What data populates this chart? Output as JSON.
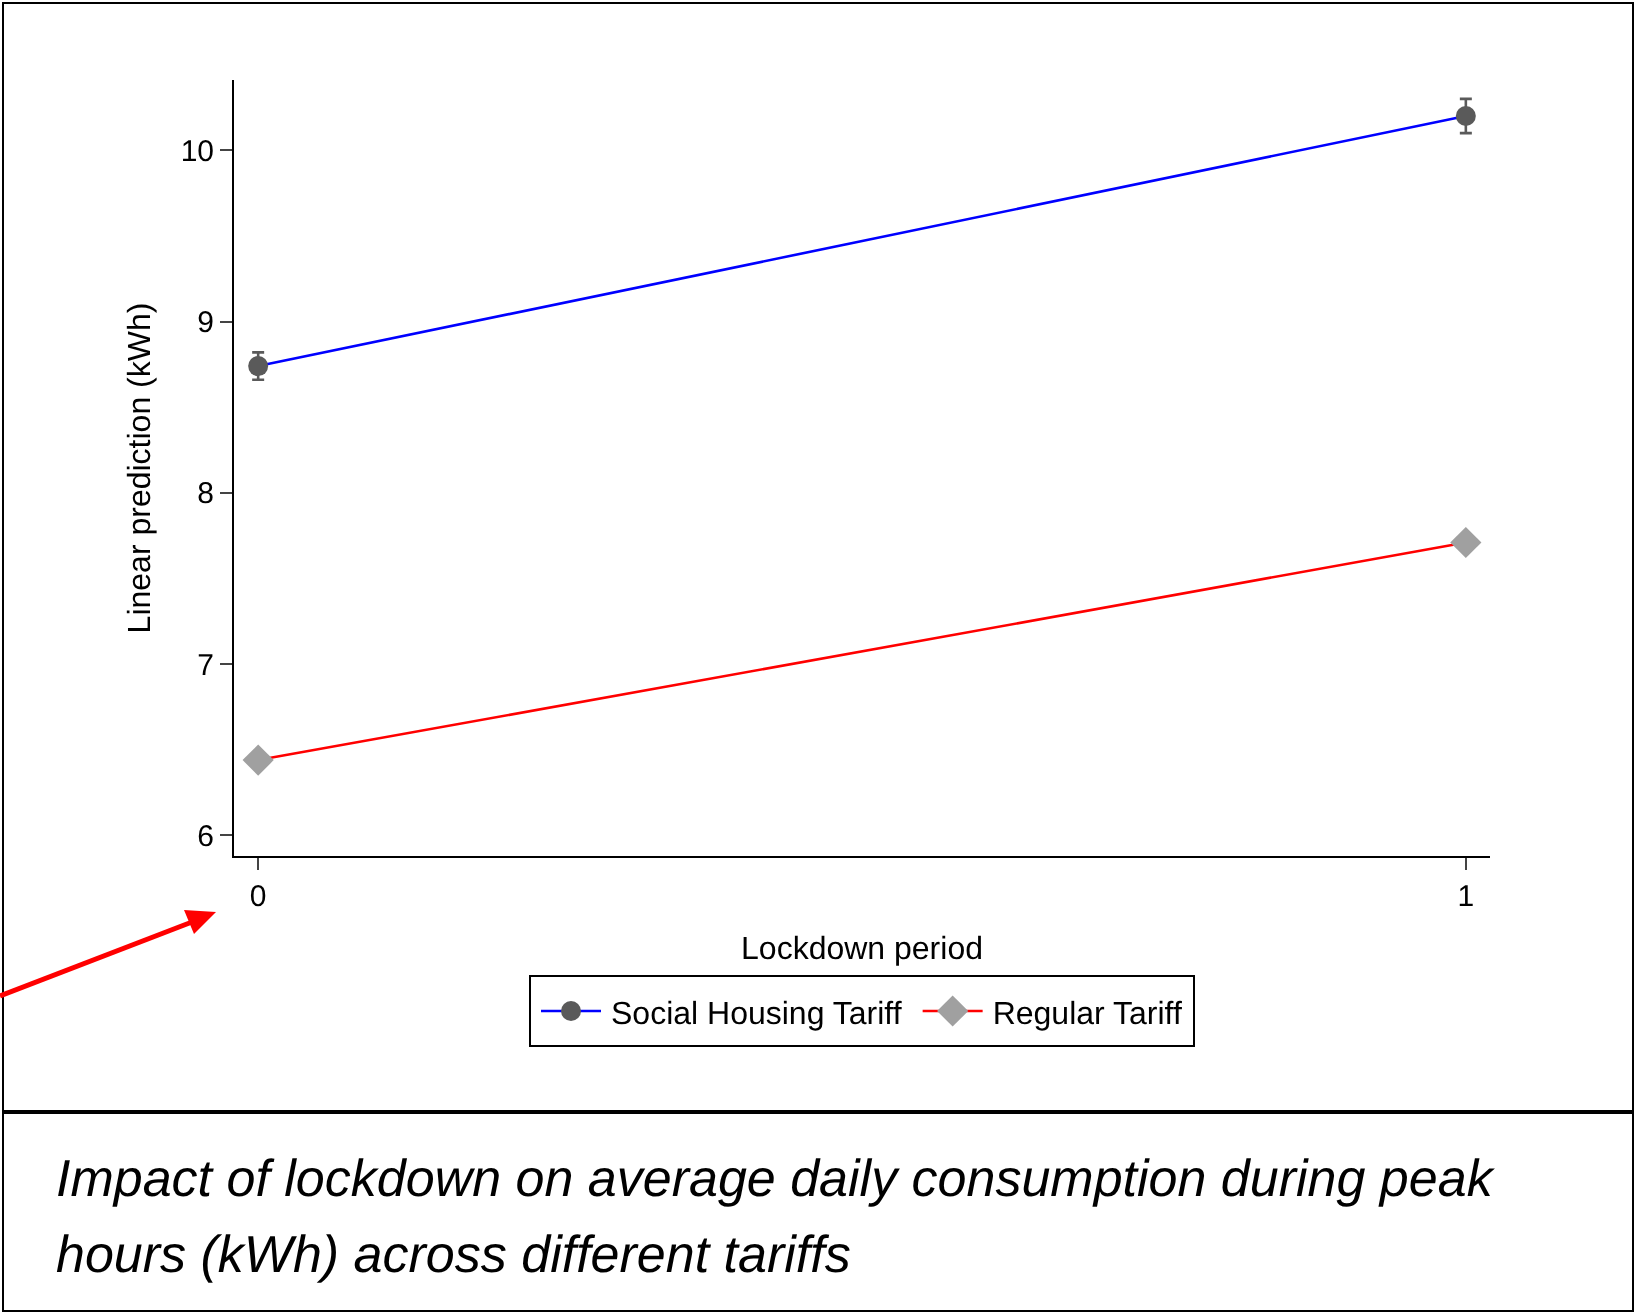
{
  "chart_data": {
    "type": "line",
    "xlabel": "Lockdown period",
    "ylabel": "Linear prediction (kWh)",
    "x": [
      0,
      1
    ],
    "xlim": [
      -0.02,
      1.02
    ],
    "xticks": [
      0,
      1
    ],
    "ylim": [
      5.88,
      10.41
    ],
    "yticks": [
      6,
      7,
      8,
      9,
      10
    ],
    "series": [
      {
        "name": "Social Housing Tariff",
        "color": "#0000ff",
        "colors": [
          "#5a5a5a",
          "#5a5a5a"
        ],
        "marker": "circle",
        "values": [
          8.74,
          10.2
        ],
        "errors": [
          0.08,
          0.1
        ]
      },
      {
        "name": "Regular Tariff",
        "color": "#ff0000",
        "colors": [
          "#a0a0a0",
          "#a0a0a0"
        ],
        "marker": "diamond",
        "values": [
          6.44,
          7.71
        ]
      }
    ],
    "grid": false,
    "legend": "bottom",
    "line_style": "solid",
    "annotations": [
      "Impact of lockdown on average daily consumption during peak hours (kWh) across different tariffs"
    ]
  }
}
